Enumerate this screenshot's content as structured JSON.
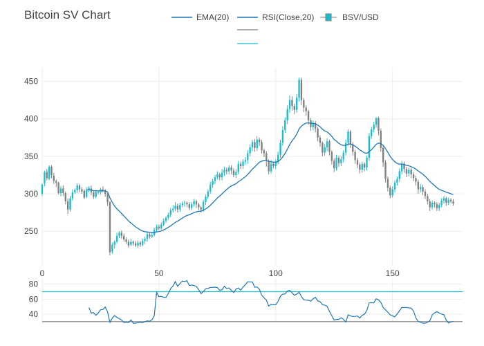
{
  "title": "Bitcoin SV Chart",
  "colors": {
    "up": "#17becf",
    "down": "#7f7f7f",
    "ema": "#1f77b4",
    "rsi": "#1f77b4",
    "rsi_band": "#17becf",
    "grid": "#eeeeee",
    "axis_text": "#444444"
  },
  "legend": [
    {
      "label": "EMA(20)",
      "color": "#1f77b4",
      "type": "line"
    },
    {
      "label": "RSI(Close,20)",
      "color": "#1f77b4",
      "type": "line"
    },
    {
      "label": "BSV/USD",
      "color": "#17becf",
      "type": "candle"
    },
    {
      "label": "",
      "color": "#7f7f7f",
      "type": "line"
    },
    {
      "label": "",
      "color": "#17becf",
      "type": "line"
    }
  ],
  "chart_data": [
    {
      "type": "candlestick",
      "name": "BSV/USD",
      "xlim": [
        0,
        180
      ],
      "ylim": [
        205,
        468
      ],
      "x_ticks": [
        0,
        50,
        100,
        150
      ],
      "y_ticks": [
        250,
        300,
        350,
        400,
        450
      ],
      "grid": true,
      "candles": [
        [
          300,
          312,
          297,
          314
        ],
        [
          314,
          329,
          310,
          331
        ],
        [
          329,
          321,
          318,
          333
        ],
        [
          320,
          336,
          318,
          338
        ],
        [
          336,
          325,
          321,
          338
        ],
        [
          324,
          317,
          313,
          328
        ],
        [
          317,
          315,
          309,
          319
        ],
        [
          315,
          301,
          299,
          316
        ],
        [
          301,
          307,
          297,
          310
        ],
        [
          307,
          301,
          297,
          311
        ],
        [
          301,
          290,
          286,
          303
        ],
        [
          290,
          279,
          273,
          294
        ],
        [
          279,
          294,
          276,
          297
        ],
        [
          294,
          302,
          291,
          306
        ],
        [
          302,
          305,
          300,
          307
        ],
        [
          305,
          311,
          301,
          314
        ],
        [
          311,
          306,
          302,
          313
        ],
        [
          306,
          303,
          300,
          309
        ],
        [
          304,
          295,
          293,
          306
        ],
        [
          296,
          305,
          294,
          309
        ],
        [
          305,
          308,
          302,
          310
        ],
        [
          307,
          302,
          298,
          311
        ],
        [
          302,
          296,
          293,
          304
        ],
        [
          296,
          302,
          294,
          305
        ],
        [
          302,
          302,
          299,
          304
        ],
        [
          302,
          306,
          299,
          308
        ],
        [
          306,
          305,
          302,
          310
        ],
        [
          305,
          300,
          296,
          306
        ],
        [
          300,
          289,
          284,
          301
        ],
        [
          289,
          222,
          218,
          290
        ],
        [
          223,
          232,
          220,
          235
        ],
        [
          232,
          236,
          227,
          238
        ],
        [
          236,
          244,
          234,
          248
        ],
        [
          244,
          248,
          241,
          250
        ],
        [
          248,
          244,
          240,
          251
        ],
        [
          244,
          239,
          236,
          247
        ],
        [
          239,
          236,
          233,
          242
        ],
        [
          236,
          231,
          228,
          239
        ],
        [
          232,
          236,
          230,
          240
        ],
        [
          236,
          234,
          231,
          238
        ],
        [
          234,
          231,
          229,
          237
        ],
        [
          231,
          235,
          228,
          238
        ],
        [
          235,
          232,
          229,
          237
        ],
        [
          232,
          237,
          230,
          240
        ],
        [
          237,
          240,
          233,
          243
        ],
        [
          240,
          246,
          236,
          249
        ],
        [
          246,
          243,
          240,
          248
        ],
        [
          243,
          245,
          241,
          249
        ],
        [
          245,
          252,
          243,
          255
        ],
        [
          252,
          256,
          249,
          259
        ],
        [
          256,
          254,
          252,
          259
        ],
        [
          254,
          259,
          252,
          262
        ],
        [
          259,
          264,
          257,
          267
        ],
        [
          264,
          268,
          261,
          270
        ],
        [
          268,
          272,
          265,
          275
        ],
        [
          272,
          278,
          269,
          281
        ],
        [
          278,
          280,
          275,
          285
        ],
        [
          280,
          284,
          277,
          289
        ],
        [
          284,
          279,
          275,
          287
        ],
        [
          279,
          285,
          276,
          288
        ],
        [
          285,
          287,
          282,
          290
        ],
        [
          287,
          288,
          283,
          291
        ],
        [
          288,
          286,
          282,
          290
        ],
        [
          286,
          281,
          278,
          289
        ],
        [
          281,
          286,
          278,
          289
        ],
        [
          286,
          290,
          283,
          293
        ],
        [
          290,
          286,
          281,
          292
        ],
        [
          286,
          282,
          278,
          288
        ],
        [
          282,
          279,
          275,
          284
        ],
        [
          279,
          289,
          276,
          292
        ],
        [
          289,
          296,
          285,
          299
        ],
        [
          296,
          303,
          293,
          306
        ],
        [
          303,
          312,
          300,
          316
        ],
        [
          312,
          317,
          308,
          320
        ],
        [
          317,
          322,
          313,
          325
        ],
        [
          322,
          326,
          319,
          330
        ],
        [
          326,
          322,
          318,
          328
        ],
        [
          322,
          328,
          318,
          333
        ],
        [
          328,
          332,
          324,
          336
        ],
        [
          332,
          330,
          326,
          335
        ],
        [
          330,
          335,
          326,
          338
        ],
        [
          335,
          331,
          326,
          338
        ],
        [
          331,
          325,
          322,
          334
        ],
        [
          325,
          329,
          321,
          333
        ],
        [
          329,
          340,
          326,
          344
        ],
        [
          340,
          337,
          333,
          343
        ],
        [
          337,
          343,
          333,
          346
        ],
        [
          343,
          345,
          339,
          349
        ],
        [
          345,
          354,
          340,
          358
        ],
        [
          354,
          362,
          350,
          366
        ],
        [
          362,
          369,
          357,
          372
        ],
        [
          369,
          361,
          356,
          373
        ],
        [
          361,
          372,
          357,
          377
        ],
        [
          372,
          369,
          364,
          375
        ],
        [
          369,
          358,
          354,
          372
        ],
        [
          358,
          354,
          349,
          360
        ],
        [
          354,
          344,
          336,
          357
        ],
        [
          344,
          330,
          326,
          346
        ],
        [
          330,
          340,
          327,
          345
        ],
        [
          340,
          337,
          334,
          343
        ],
        [
          337,
          342,
          333,
          346
        ],
        [
          342,
          352,
          339,
          356
        ],
        [
          352,
          368,
          348,
          372
        ],
        [
          368,
          385,
          364,
          390
        ],
        [
          385,
          398,
          381,
          402
        ],
        [
          398,
          413,
          393,
          418
        ],
        [
          413,
          425,
          408,
          431
        ],
        [
          425,
          417,
          411,
          430
        ],
        [
          417,
          412,
          406,
          420
        ],
        [
          412,
          428,
          408,
          433
        ],
        [
          428,
          452,
          423,
          455
        ],
        [
          452,
          425,
          418,
          455
        ],
        [
          425,
          415,
          409,
          428
        ],
        [
          415,
          410,
          404,
          418
        ],
        [
          410,
          398,
          392,
          412
        ],
        [
          398,
          389,
          384,
          401
        ],
        [
          389,
          394,
          385,
          398
        ],
        [
          394,
          387,
          382,
          397
        ],
        [
          387,
          375,
          370,
          389
        ],
        [
          375,
          368,
          363,
          378
        ],
        [
          368,
          355,
          350,
          370
        ],
        [
          355,
          362,
          351,
          366
        ],
        [
          362,
          370,
          357,
          374
        ],
        [
          370,
          356,
          351,
          372
        ],
        [
          356,
          344,
          339,
          358
        ],
        [
          344,
          334,
          329,
          347
        ],
        [
          334,
          348,
          331,
          352
        ],
        [
          348,
          341,
          336,
          351
        ],
        [
          341,
          346,
          337,
          350
        ],
        [
          346,
          355,
          342,
          358
        ],
        [
          355,
          368,
          351,
          372
        ],
        [
          368,
          383,
          364,
          386
        ],
        [
          383,
          366,
          361,
          385
        ],
        [
          366,
          356,
          351,
          369
        ],
        [
          356,
          345,
          340,
          359
        ],
        [
          345,
          339,
          334,
          348
        ],
        [
          339,
          332,
          327,
          342
        ],
        [
          332,
          340,
          328,
          343
        ],
        [
          340,
          335,
          330,
          342
        ],
        [
          335,
          348,
          331,
          351
        ],
        [
          348,
          377,
          344,
          381
        ],
        [
          377,
          386,
          373,
          389
        ],
        [
          386,
          392,
          382,
          396
        ],
        [
          392,
          401,
          388,
          402
        ],
        [
          401,
          384,
          378,
          403
        ],
        [
          384,
          361,
          356,
          387
        ],
        [
          361,
          342,
          336,
          364
        ],
        [
          342,
          320,
          315,
          345
        ],
        [
          320,
          308,
          303,
          323
        ],
        [
          308,
          298,
          294,
          311
        ],
        [
          298,
          306,
          295,
          310
        ],
        [
          306,
          315,
          302,
          318
        ],
        [
          315,
          320,
          311,
          323
        ],
        [
          320,
          330,
          316,
          334
        ],
        [
          330,
          340,
          326,
          344
        ],
        [
          340,
          333,
          328,
          343
        ],
        [
          333,
          327,
          322,
          336
        ],
        [
          327,
          332,
          323,
          335
        ],
        [
          332,
          326,
          321,
          335
        ],
        [
          326,
          321,
          317,
          329
        ],
        [
          321,
          316,
          311,
          324
        ],
        [
          316,
          306,
          300,
          319
        ],
        [
          306,
          309,
          302,
          313
        ],
        [
          309,
          303,
          298,
          312
        ],
        [
          303,
          297,
          293,
          306
        ],
        [
          297,
          290,
          286,
          300
        ],
        [
          290,
          282,
          277,
          293
        ],
        [
          282,
          288,
          279,
          291
        ],
        [
          288,
          286,
          282,
          290
        ],
        [
          286,
          281,
          277,
          289
        ],
        [
          281,
          285,
          277,
          288
        ],
        [
          285,
          291,
          282,
          294
        ],
        [
          291,
          294,
          287,
          297
        ],
        [
          294,
          288,
          284,
          296
        ],
        [
          288,
          292,
          285,
          295
        ],
        [
          292,
          290,
          287,
          294
        ],
        [
          290,
          287,
          284,
          293
        ]
      ],
      "ema": [
        {
          "period": 20,
          "name": "EMA(20)"
        }
      ]
    },
    {
      "type": "line",
      "name": "RSI(Close,20)",
      "xlim": [
        0,
        180
      ],
      "ylim": [
        28,
        88
      ],
      "y_ticks": [
        40,
        60,
        80
      ],
      "bands": [
        30,
        70
      ],
      "rsi_period": 20
    }
  ]
}
